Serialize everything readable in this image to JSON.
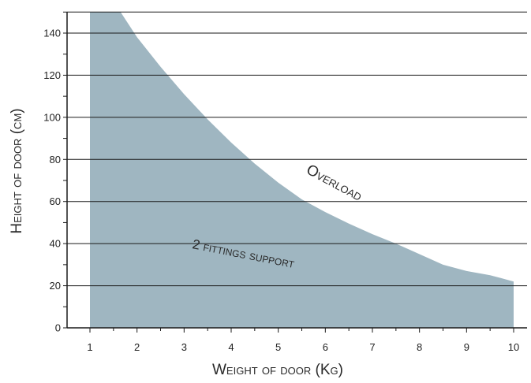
{
  "chart_data": {
    "type": "area",
    "title": "",
    "xlabel": "Weight of door (Kg)",
    "ylabel": "Height of door (cm)",
    "xlim": [
      0.5,
      10.5
    ],
    "ylim": [
      0,
      150
    ],
    "x_ticks": [
      1,
      2,
      3,
      4,
      5,
      6,
      7,
      8,
      9,
      10
    ],
    "y_ticks": [
      0,
      20,
      40,
      60,
      80,
      100,
      120,
      140
    ],
    "grid": "horizontal",
    "series": [
      {
        "x": [
          1,
          1.65,
          2,
          2.5,
          3,
          3.5,
          4,
          4.5,
          5,
          5.5,
          6,
          6.5,
          7,
          7.5,
          8,
          8.5,
          9,
          9.5,
          10
        ],
        "values": [
          150,
          150,
          138,
          124,
          111,
          99,
          88,
          78,
          69,
          61,
          55,
          49.5,
          44.5,
          40,
          35,
          30,
          27,
          25,
          22
        ]
      }
    ],
    "annotations": {
      "overload": "Overload",
      "support": "2 fittings support"
    },
    "colors": {
      "fill": "#9fb6c1",
      "grid": "#1a1a1a",
      "axis": "#1a1a1a"
    }
  }
}
